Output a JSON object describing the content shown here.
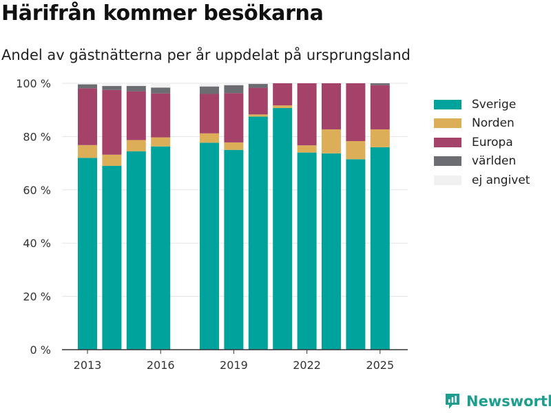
{
  "title": "Härifrån kommer besökarna",
  "subtitle": "Andel av gästnätterna per år uppdelat på ursprungsland",
  "brand": {
    "name": "Newsworthy",
    "icon": "newsworthy-logo-icon"
  },
  "chart_data": {
    "type": "bar",
    "stacked": true,
    "title": "Härifrån kommer besökarna",
    "subtitle": "Andel av gästnätterna per år uppdelat på ursprungsland",
    "xlabel": "",
    "ylabel": "",
    "ylim": [
      0,
      100
    ],
    "yticks": [
      0,
      20,
      40,
      60,
      80,
      100
    ],
    "ytick_labels": [
      "0 %",
      "20 %",
      "40 %",
      "60 %",
      "80 %",
      "100 %"
    ],
    "xticks": [
      2013,
      2016,
      2019,
      2022,
      2025
    ],
    "grid": true,
    "legend_position": "right",
    "categories": [
      2013,
      2014,
      2015,
      2016,
      2017,
      2018,
      2019,
      2020,
      2021,
      2022,
      2023,
      2024,
      2025
    ],
    "series": [
      {
        "name": "Sverige",
        "color": "#00a39b",
        "values": [
          72,
          69,
          74.5,
          76.3,
          null,
          77.7,
          75,
          87.5,
          90.7,
          74,
          73.7,
          71.5,
          76
        ]
      },
      {
        "name": "Norden",
        "color": "#dcae58",
        "values": [
          4.8,
          4.2,
          4.2,
          3.4,
          null,
          3.5,
          2.8,
          0.8,
          1.0,
          2.7,
          9.0,
          6.8,
          6.7
        ]
      },
      {
        "name": "Europa",
        "color": "#a4426a",
        "values": [
          21.3,
          24.3,
          18.3,
          16.5,
          null,
          14.8,
          18.5,
          10.0,
          8.3,
          23.3,
          17.3,
          21.7,
          16.6
        ]
      },
      {
        "name": "världen",
        "color": "#6c6c73",
        "values": [
          1.5,
          1.5,
          2.0,
          2.2,
          null,
          2.8,
          3.0,
          1.5,
          0,
          0,
          0,
          0,
          0.7
        ]
      },
      {
        "name": "ej angivet",
        "color": "#f1f1f1",
        "values": [
          0.4,
          1.0,
          1.0,
          1.6,
          null,
          1.2,
          0.7,
          0.2,
          0,
          0,
          0,
          0,
          0
        ]
      }
    ]
  }
}
